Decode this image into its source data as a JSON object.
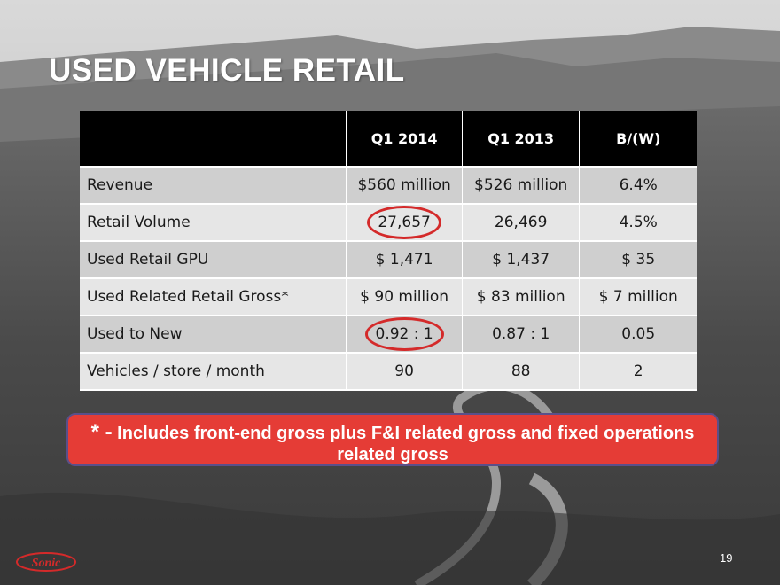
{
  "slide": {
    "title": "USED VEHICLE RETAIL",
    "page_number": "19",
    "logo_text": "Sonic"
  },
  "table": {
    "headers": [
      "",
      "Q1 2014",
      "Q1 2013",
      "B/(W)"
    ],
    "rows": [
      {
        "label": "Revenue",
        "q1_2014": "$560 million",
        "q1_2013": "$526 million",
        "bw": "6.4%"
      },
      {
        "label": "Retail Volume",
        "q1_2014": "27,657",
        "q1_2013": "26,469",
        "bw": "4.5%"
      },
      {
        "label": "Used Retail GPU",
        "q1_2014": "$ 1,471",
        "q1_2013": "$ 1,437",
        "bw": "$ 35"
      },
      {
        "label": "Used Related Retail Gross*",
        "q1_2014": "$ 90 million",
        "q1_2013": "$ 83 million",
        "bw": "$ 7 million"
      },
      {
        "label": "Used to New",
        "q1_2014": "0.92 : 1",
        "q1_2013": "0.87 : 1",
        "bw": "0.05"
      },
      {
        "label": "Vehicles / store / month",
        "q1_2014": "90",
        "q1_2013": "88",
        "bw": "2"
      }
    ]
  },
  "footnote": {
    "marker": "* -",
    "text": "Includes front-end gross plus F&I related gross and fixed operations related gross"
  },
  "colors": {
    "header_bg": "#000000",
    "row_odd": "#cfcfcf",
    "row_even": "#e6e6e6",
    "footnote_bg": "#e53c36",
    "circle": "#d42a2a"
  }
}
